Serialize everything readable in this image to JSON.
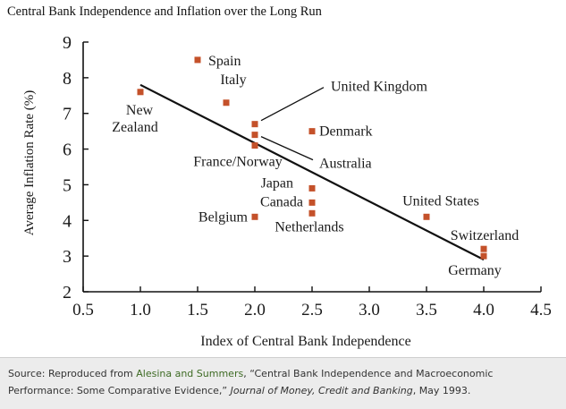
{
  "chart_data": {
    "type": "scatter",
    "title": "Central Bank Independence and Inflation over the Long Run",
    "xlabel": "Index of Central Bank Independence",
    "ylabel": "Average Inflation Rate (%)",
    "xlim": [
      0.5,
      4.5
    ],
    "ylim": [
      2,
      9
    ],
    "xticks": [
      "0.5",
      "1.0",
      "1.5",
      "2.0",
      "2.5",
      "3.0",
      "3.5",
      "4.0",
      "4.5"
    ],
    "yticks": [
      "2",
      "3",
      "4",
      "5",
      "6",
      "7",
      "8",
      "9"
    ],
    "grid": false,
    "marker_color": "#c4512a",
    "points": [
      {
        "label": "Spain",
        "x": 1.5,
        "y": 8.5
      },
      {
        "label": "New Zealand",
        "x": 1.0,
        "y": 7.6
      },
      {
        "label": "Italy",
        "x": 1.75,
        "y": 7.3
      },
      {
        "label": "United Kingdom",
        "x": 2.0,
        "y": 6.7
      },
      {
        "label": "Australia",
        "x": 2.0,
        "y": 6.4
      },
      {
        "label": "France/Norway",
        "x": 2.0,
        "y": 6.1
      },
      {
        "label": "Denmark",
        "x": 2.5,
        "y": 6.5
      },
      {
        "label": "Japan",
        "x": 2.5,
        "y": 4.9
      },
      {
        "label": "Canada",
        "x": 2.5,
        "y": 4.5
      },
      {
        "label": "Netherlands",
        "x": 2.5,
        "y": 4.2
      },
      {
        "label": "Belgium",
        "x": 2.0,
        "y": 4.1
      },
      {
        "label": "United States",
        "x": 3.5,
        "y": 4.1
      },
      {
        "label": "Switzerland",
        "x": 4.0,
        "y": 3.2
      },
      {
        "label": "Germany",
        "x": 4.0,
        "y": 3.0
      }
    ],
    "trendline": {
      "x": [
        1.0,
        4.0
      ],
      "y": [
        7.8,
        2.9
      ]
    }
  },
  "footer": {
    "prefix": "Source: Reproduced from ",
    "link_text": "Alesina and Summers",
    "middle": ", “Central Bank Independence and Macroeconomic Performance: Some Comparative Evidence,” ",
    "journal": "Journal of Money, Credit and Banking",
    "suffix": ", May 1993."
  }
}
